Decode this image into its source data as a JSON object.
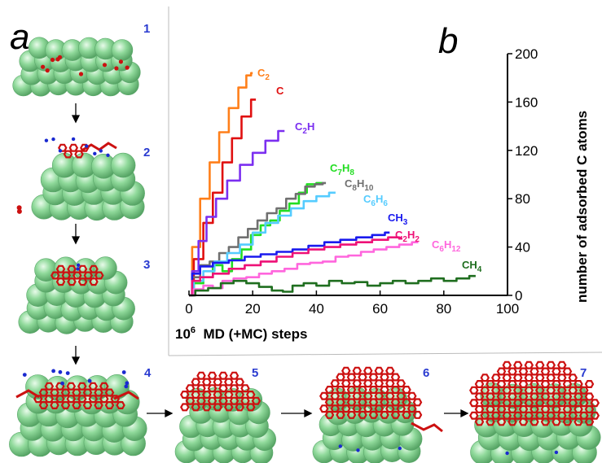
{
  "panel_a": {
    "letter": "a",
    "steps": [
      "1",
      "2",
      "3",
      "4",
      "5",
      "6",
      "7"
    ]
  },
  "panel_b": {
    "letter": "b"
  },
  "colors": {
    "atom_metal": "#8fd99a",
    "atom_metal_edge": "#5aa86a",
    "atom_carbon": "#cc1111",
    "atom_hydrogen": "#1a2ad0",
    "step_number": "#2a3bd0"
  },
  "chart_data": {
    "type": "line",
    "xlabel": "10⁶ MD (+MC) steps",
    "ylabel": "number of adsorbed C atoms",
    "xlim": [
      0,
      100
    ],
    "ylim": [
      0,
      200
    ],
    "x_ticks": [
      "0",
      "20",
      "40",
      "60",
      "80",
      "100"
    ],
    "y_ticks": [
      "0",
      "40",
      "80",
      "120",
      "160",
      "200"
    ],
    "y_axis_position": "right",
    "grid": false,
    "series": [
      {
        "name": "C₂",
        "color": "#ff7f1a",
        "points": [
          [
            0,
            0
          ],
          [
            2,
            40
          ],
          [
            5,
            80
          ],
          [
            8,
            110
          ],
          [
            11,
            135
          ],
          [
            14,
            155
          ],
          [
            17,
            172
          ],
          [
            19,
            182
          ],
          [
            20,
            184
          ]
        ]
      },
      {
        "name": "C",
        "color": "#e01010",
        "points": [
          [
            0,
            0
          ],
          [
            3,
            30
          ],
          [
            6,
            60
          ],
          [
            9,
            85
          ],
          [
            12,
            110
          ],
          [
            15,
            130
          ],
          [
            18,
            148
          ],
          [
            21,
            162
          ]
        ]
      },
      {
        "name": "C₂H",
        "color": "#7b2ff0",
        "points": [
          [
            0,
            0
          ],
          [
            2,
            20
          ],
          [
            4,
            45
          ],
          [
            7,
            65
          ],
          [
            10,
            80
          ],
          [
            14,
            95
          ],
          [
            18,
            108
          ],
          [
            22,
            118
          ],
          [
            26,
            128
          ],
          [
            30,
            136
          ]
        ]
      },
      {
        "name": "C₇H₈",
        "color": "#22dd22",
        "points": [
          [
            0,
            0
          ],
          [
            3,
            10
          ],
          [
            6,
            15
          ],
          [
            9,
            25
          ],
          [
            12,
            20
          ],
          [
            15,
            30
          ],
          [
            18,
            38
          ],
          [
            21,
            50
          ],
          [
            24,
            58
          ],
          [
            27,
            62
          ],
          [
            30,
            70
          ],
          [
            33,
            76
          ],
          [
            36,
            85
          ],
          [
            38,
            92
          ],
          [
            42,
            93
          ]
        ]
      },
      {
        "name": "C₈H₁₀",
        "color": "#707070",
        "points": [
          [
            0,
            0
          ],
          [
            2,
            15
          ],
          [
            5,
            25
          ],
          [
            8,
            28
          ],
          [
            11,
            35
          ],
          [
            14,
            40
          ],
          [
            17,
            48
          ],
          [
            20,
            55
          ],
          [
            23,
            62
          ],
          [
            26,
            68
          ],
          [
            29,
            72
          ],
          [
            32,
            80
          ],
          [
            35,
            84
          ],
          [
            38,
            90
          ],
          [
            41,
            92
          ],
          [
            43,
            93
          ]
        ]
      },
      {
        "name": "C₆H₆",
        "color": "#55ccff",
        "points": [
          [
            0,
            0
          ],
          [
            3,
            12
          ],
          [
            6,
            20
          ],
          [
            10,
            28
          ],
          [
            14,
            35
          ],
          [
            18,
            42
          ],
          [
            22,
            52
          ],
          [
            26,
            60
          ],
          [
            30,
            66
          ],
          [
            34,
            72
          ],
          [
            38,
            78
          ],
          [
            42,
            82
          ],
          [
            46,
            85
          ]
        ]
      },
      {
        "name": "CH₃",
        "color": "#1a1aee",
        "points": [
          [
            0,
            0
          ],
          [
            2,
            18
          ],
          [
            5,
            24
          ],
          [
            10,
            27
          ],
          [
            15,
            29
          ],
          [
            20,
            32
          ],
          [
            25,
            34
          ],
          [
            30,
            36
          ],
          [
            35,
            38
          ],
          [
            40,
            41
          ],
          [
            45,
            44
          ],
          [
            50,
            46
          ],
          [
            55,
            48
          ],
          [
            60,
            50
          ],
          [
            63,
            52
          ]
        ]
      },
      {
        "name": "C₂H₂",
        "color": "#ee1177",
        "points": [
          [
            0,
            0
          ],
          [
            2,
            12
          ],
          [
            5,
            15
          ],
          [
            10,
            18
          ],
          [
            15,
            22
          ],
          [
            20,
            25
          ],
          [
            25,
            28
          ],
          [
            30,
            32
          ],
          [
            35,
            35
          ],
          [
            40,
            38
          ],
          [
            45,
            40
          ],
          [
            50,
            42
          ],
          [
            55,
            44
          ],
          [
            60,
            46
          ],
          [
            65,
            48
          ],
          [
            67,
            47
          ]
        ]
      },
      {
        "name": "C₆H₁₂",
        "color": "#ff66dd",
        "points": [
          [
            0,
            0
          ],
          [
            3,
            5
          ],
          [
            6,
            8
          ],
          [
            9,
            6
          ],
          [
            12,
            12
          ],
          [
            16,
            14
          ],
          [
            20,
            15
          ],
          [
            24,
            18
          ],
          [
            28,
            20
          ],
          [
            32,
            22
          ],
          [
            36,
            26
          ],
          [
            40,
            27
          ],
          [
            44,
            28
          ],
          [
            48,
            32
          ],
          [
            52,
            33
          ],
          [
            56,
            36
          ],
          [
            60,
            38
          ],
          [
            64,
            40
          ],
          [
            68,
            42
          ],
          [
            72,
            44
          ]
        ]
      },
      {
        "name": "CH₄",
        "color": "#1f6e1f",
        "points": [
          [
            0,
            0
          ],
          [
            4,
            4
          ],
          [
            8,
            6
          ],
          [
            12,
            10
          ],
          [
            16,
            12
          ],
          [
            20,
            10
          ],
          [
            24,
            7
          ],
          [
            28,
            4
          ],
          [
            31,
            3
          ],
          [
            34,
            8
          ],
          [
            38,
            10
          ],
          [
            42,
            8
          ],
          [
            46,
            12
          ],
          [
            50,
            10
          ],
          [
            54,
            11
          ],
          [
            58,
            8
          ],
          [
            62,
            10
          ],
          [
            66,
            12
          ],
          [
            70,
            10
          ],
          [
            74,
            12
          ],
          [
            78,
            14
          ],
          [
            82,
            12
          ],
          [
            86,
            14
          ],
          [
            90,
            16
          ]
        ]
      }
    ]
  }
}
